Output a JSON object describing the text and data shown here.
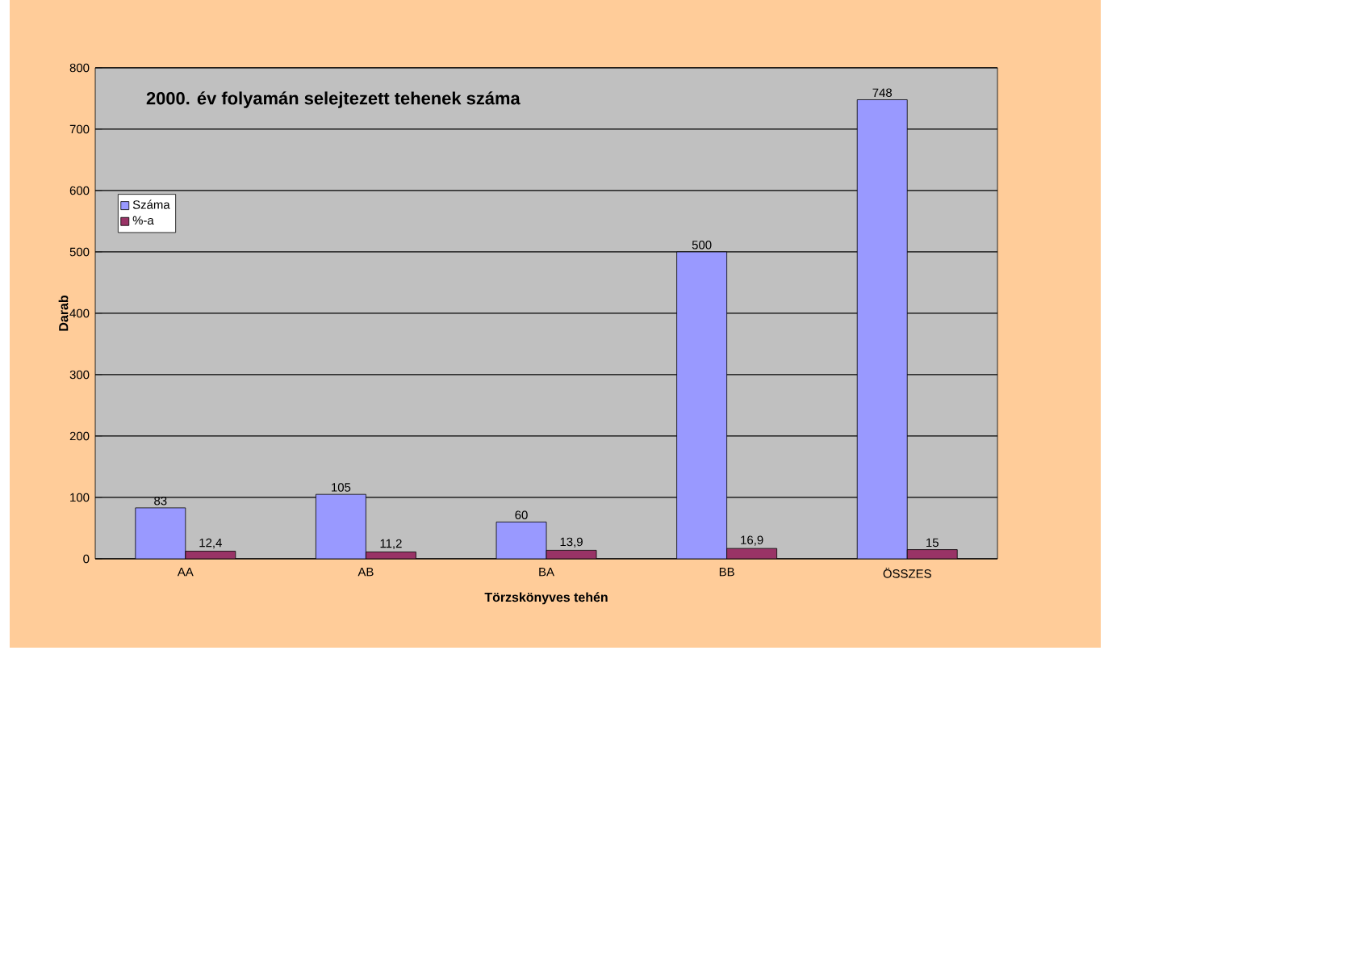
{
  "chart_data": {
    "type": "bar",
    "title": "2000. év folyamán selejtezett tehenek száma",
    "xlabel": "Törzskönyves tehén",
    "ylabel": "Darab",
    "categories": [
      "AA",
      "AB",
      "BA",
      "BB",
      "ÖSSZES"
    ],
    "series": [
      {
        "name": "Száma",
        "color": "#9999ff",
        "values": [
          83,
          105,
          60,
          500,
          748
        ],
        "value_labels": [
          "83",
          "105",
          "60",
          "500",
          "748"
        ]
      },
      {
        "name": "%-a",
        "color": "#993366",
        "values": [
          12.4,
          11.2,
          13.9,
          16.9,
          15
        ],
        "value_labels": [
          "12,4",
          "11,2",
          "13,9",
          "16,9",
          "15"
        ]
      }
    ],
    "ylim": [
      0,
      800
    ],
    "yticks": [
      0,
      100,
      200,
      300,
      400,
      500,
      600,
      700,
      800
    ],
    "grid": "y",
    "legend": "left"
  }
}
